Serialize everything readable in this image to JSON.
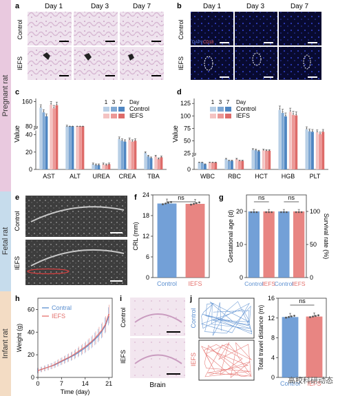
{
  "side_labels": {
    "pregnant": "Pregnant rat",
    "fetal": "Fetal rat",
    "infant": "Infant rat"
  },
  "colors": {
    "pregnant_band": "#e9c9df",
    "fetal_band": "#c6dcec",
    "infant_band": "#f3dcc4",
    "control_1": "#b8cfe6",
    "control_3": "#7fa8d4",
    "control_7": "#4f86c2",
    "iefs_1": "#f4c3c2",
    "iefs_3": "#ec9896",
    "iefs_7": "#de6b69",
    "control": "#5b8fd0",
    "iefs": "#e4706c"
  },
  "panel_letters": {
    "a": "a",
    "b": "b",
    "c": "c",
    "d": "d",
    "e": "e",
    "f": "f",
    "g": "g",
    "h": "h",
    "i": "i",
    "j": "j"
  },
  "panel_a": {
    "days": [
      "Day 1",
      "Day 3",
      "Day 7"
    ],
    "rows": [
      "Control",
      "IEFS"
    ]
  },
  "panel_b": {
    "days": [
      "Day 1",
      "Day 3",
      "Day 7"
    ],
    "rows": [
      "Control",
      "IEFS"
    ],
    "stain_dapi": "DAPI/",
    "stain_cd18": "CD18"
  },
  "panel_e": {
    "rows": [
      "Control",
      "IEFS"
    ]
  },
  "panel_i": {
    "rows": [
      "Control",
      "IEFS"
    ],
    "xlabel": "Brain"
  },
  "panel_j": {
    "rows": [
      "Control",
      "IEFS"
    ]
  },
  "legend": {
    "day_label": "Day",
    "days": [
      "1",
      "3",
      "7"
    ],
    "control": "Control",
    "iefs": "IEFS"
  },
  "watermark": "高校科研动态",
  "chart_data": [
    {
      "id": "c",
      "type": "bar",
      "ylabel": "Value",
      "categories": [
        "AST",
        "ALT",
        "UREA",
        "CREA",
        "TBA"
      ],
      "yticks": [
        0,
        20,
        40,
        80,
        160
      ],
      "ylim_lower": [
        0,
        45
      ],
      "ylim_upper": [
        80,
        170
      ],
      "series": [
        {
          "name": "Control Day 1",
          "values": [
            140,
            78,
            6,
            35,
            19
          ]
        },
        {
          "name": "Control Day 3",
          "values": [
            125,
            75,
            5,
            33,
            15
          ]
        },
        {
          "name": "Control Day 7",
          "values": [
            112,
            68,
            5,
            32,
            13
          ]
        },
        {
          "name": "IEFS Day 1",
          "values": [
            150,
            64,
            6,
            34,
            15
          ]
        },
        {
          "name": "IEFS Day 3",
          "values": [
            138,
            65,
            5,
            32,
            12
          ]
        },
        {
          "name": "IEFS Day 7",
          "values": [
            148,
            67,
            6,
            33,
            14
          ]
        }
      ]
    },
    {
      "id": "d",
      "type": "bar",
      "ylabel": "Value",
      "categories": [
        "WBC",
        "RBC",
        "HCT",
        "HGB",
        "PLT"
      ],
      "yticks": [
        0,
        25,
        50,
        75,
        100,
        125
      ],
      "ylim_lower": [
        0,
        7
      ],
      "ylim_upper": [
        25,
        135
      ],
      "series": [
        {
          "name": "Control Day 1",
          "values": [
            4,
            6,
            32,
            112,
            73
          ]
        },
        {
          "name": "Control Day 3",
          "values": [
            4,
            5,
            31,
            106,
            69
          ]
        },
        {
          "name": "Control Day 7",
          "values": [
            3,
            5,
            29,
            99,
            68
          ]
        },
        {
          "name": "IEFS Day 1",
          "values": [
            4,
            6,
            31,
            108,
            67
          ]
        },
        {
          "name": "IEFS Day 3",
          "values": [
            4,
            5,
            30,
            102,
            63
          ]
        },
        {
          "name": "IEFS Day 7",
          "values": [
            4,
            5,
            30,
            101,
            68
          ]
        }
      ]
    },
    {
      "id": "f",
      "type": "bar",
      "ylabel": "CRL (mm)",
      "categories": [
        "Control",
        "IEFS"
      ],
      "values": [
        21.5,
        21.4
      ],
      "yticks": [
        0,
        6,
        12,
        18,
        24
      ],
      "ylim": [
        0,
        24
      ],
      "annotation": "ns"
    },
    {
      "id": "g",
      "type": "bar",
      "ylabel": "Gestational age (d)",
      "ylabel_right": "Survival rate (%)",
      "categories": [
        "Control",
        "IEFS",
        "Control",
        "IEFS"
      ],
      "values": [
        20,
        20,
        20,
        20
      ],
      "yticks": [
        0,
        10,
        20
      ],
      "ylim": [
        0,
        25
      ],
      "yticks_right": [
        0,
        50,
        100
      ],
      "annotations": [
        "ns",
        "ns"
      ]
    },
    {
      "id": "h",
      "type": "line",
      "xlabel": "Time (day)",
      "ylabel": "Weight (g)",
      "xticks": [
        0,
        7,
        14,
        21
      ],
      "yticks": [
        0,
        20,
        40,
        60
      ],
      "xlim": [
        0,
        22
      ],
      "ylim": [
        0,
        70
      ],
      "series": [
        {
          "name": "Contral",
          "x": [
            0,
            1,
            2,
            3,
            4,
            5,
            6,
            7,
            8,
            9,
            10,
            11,
            12,
            13,
            14,
            15,
            16,
            17,
            18,
            19,
            20,
            21
          ],
          "y": [
            6,
            7,
            8,
            9,
            10,
            11,
            12.5,
            14,
            15.5,
            17,
            18.5,
            20,
            22,
            24,
            26,
            28.5,
            31,
            34,
            37,
            41,
            46,
            54
          ]
        },
        {
          "name": "IEFS",
          "x": [
            0,
            1,
            2,
            3,
            4,
            5,
            6,
            7,
            8,
            9,
            10,
            11,
            12,
            13,
            14,
            15,
            16,
            17,
            18,
            19,
            20,
            21
          ],
          "y": [
            6,
            7,
            8,
            9,
            10,
            11.5,
            13,
            14.5,
            16,
            17.5,
            19,
            21,
            23,
            25,
            27,
            29.5,
            32,
            35,
            38.5,
            42,
            47,
            56
          ]
        }
      ]
    },
    {
      "id": "j",
      "type": "bar",
      "ylabel": "Total travel distance (m)",
      "categories": [
        "Control",
        "IEFS"
      ],
      "values": [
        12.2,
        12.3
      ],
      "yticks": [
        0,
        4,
        8,
        12,
        16
      ],
      "ylim": [
        0,
        16
      ],
      "annotation": "ns"
    }
  ]
}
